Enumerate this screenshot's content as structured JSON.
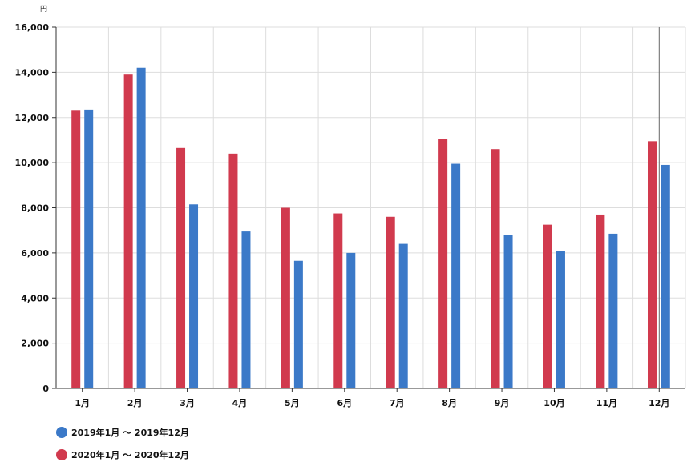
{
  "chart_data": {
    "type": "bar",
    "y_unit": "円",
    "ylim": [
      0,
      16000
    ],
    "y_ticks": [
      "0",
      "2,000",
      "4,000",
      "6,000",
      "8,000",
      "10,000",
      "12,000",
      "14,000",
      "16,000"
    ],
    "grid": true,
    "categories": [
      "1月",
      "2月",
      "3月",
      "4月",
      "5月",
      "6月",
      "7月",
      "8月",
      "9月",
      "10月",
      "11月",
      "12月"
    ],
    "series": [
      {
        "name": "2020年1月 ～ 2020年12月",
        "color": "#d13a4e",
        "values": [
          12300,
          13900,
          10650,
          10400,
          8000,
          7750,
          7600,
          11050,
          10600,
          7250,
          7700,
          10950
        ]
      },
      {
        "name": "2019年1月 ～ 2019年12月",
        "color": "#3b79c8",
        "values": [
          12350,
          14200,
          8150,
          6950,
          5650,
          6000,
          6400,
          9950,
          6800,
          6100,
          6850,
          9900
        ]
      }
    ],
    "legend_position": "bottom-left",
    "hover_line_category": "12月"
  },
  "legend": [
    {
      "label": "2019年1月 ～ 2019年12月",
      "color": "#3b79c8"
    },
    {
      "label": "2020年1月 ～ 2020年12月",
      "color": "#d13a4e"
    }
  ]
}
